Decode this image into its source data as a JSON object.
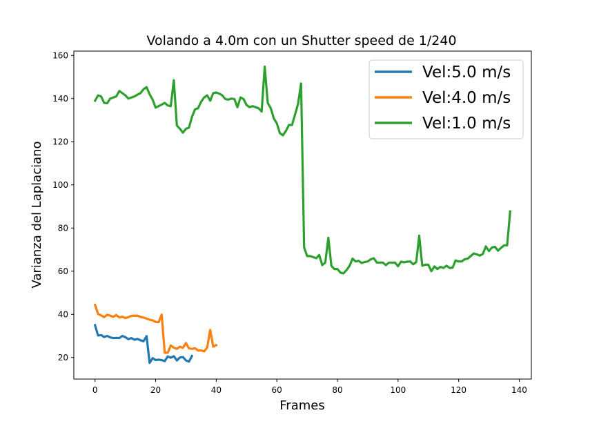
{
  "chart_data": {
    "type": "line",
    "title": "Volando a 4.0m con un Shutter speed de 1/240",
    "xlabel": "Frames",
    "ylabel": "Varianza del Laplaciano",
    "xlim": [
      -7,
      144
    ],
    "ylim": [
      10,
      162
    ],
    "xticks": [
      0,
      20,
      40,
      60,
      80,
      100,
      120,
      140
    ],
    "yticks": [
      20,
      40,
      60,
      80,
      100,
      120,
      140,
      160
    ],
    "grid": false,
    "legend_position": "top-right",
    "series": [
      {
        "name": "Vel:5.0 m/s",
        "color": "#1f77b4",
        "values": [
          35,
          30.2,
          30.4,
          29.5,
          30,
          29.3,
          29,
          29.1,
          29,
          30,
          29.4,
          28.5,
          29,
          28.2,
          28.6,
          28,
          27.5,
          29.9,
          17.5,
          19.7,
          18.8,
          19,
          18.8,
          18.3,
          20.5,
          19.9,
          20.6,
          18.6,
          20,
          20.2,
          18.6,
          18.1,
          20.7
        ]
      },
      {
        "name": "Vel:4.0 m/s",
        "color": "#ff7f0e",
        "values": [
          44.4,
          40.2,
          39.5,
          38.7,
          39.8,
          39.4,
          38.8,
          39.7,
          38.5,
          38.9,
          38.3,
          38.7,
          39.3,
          39.3,
          39.4,
          38.8,
          38.5,
          38,
          37.5,
          37.2,
          36.5,
          36.3,
          39.9,
          22.2,
          22.2,
          25.6,
          24.5,
          24,
          25,
          24.5,
          26.7,
          24.2,
          24,
          24.3,
          23.2,
          23.3,
          22.8,
          24.6,
          32.8,
          25,
          25.7
        ]
      },
      {
        "name": "Vel:1.0 m/s",
        "color": "#2ca02c",
        "values": [
          139,
          141.5,
          141,
          138,
          137.8,
          140,
          140.5,
          141,
          143.5,
          142.5,
          141.5,
          140,
          140.5,
          141,
          141.8,
          142.5,
          144.3,
          145.3,
          142,
          139.5,
          135.8,
          136.5,
          137.2,
          138,
          136.8,
          136.5,
          148.5,
          127.5,
          126,
          124.2,
          126,
          126.5,
          131.5,
          135,
          135.5,
          138.5,
          140.5,
          141.5,
          139,
          142.5,
          142.8,
          142.3,
          141.5,
          139.8,
          139.5,
          140,
          139.8,
          136,
          140.5,
          139.8,
          137,
          136,
          136.5,
          136,
          135.5,
          134,
          154.8,
          138,
          135.5,
          130.8,
          128.5,
          124,
          123,
          125,
          127.8,
          127.7,
          132.5,
          137.5,
          147,
          71,
          67,
          67,
          66.5,
          66,
          67.5,
          62.8,
          64,
          75.5,
          62.5,
          61,
          61,
          59.3,
          59,
          60.5,
          62.5,
          65.8,
          64.5,
          64.8,
          63.8,
          64.2,
          64.5,
          65.5,
          66,
          64,
          64,
          64,
          62.8,
          64,
          64,
          64,
          62.3,
          64.4,
          64.1,
          64.4,
          64.5,
          63.2,
          64.2,
          76.5,
          62.5,
          63,
          63,
          60,
          62.2,
          61,
          62,
          61.5,
          62.5,
          61.5,
          61.6,
          65,
          64.5,
          64.5,
          65.5,
          65.8,
          67,
          68.2,
          67.8,
          67.2,
          68,
          71.5,
          69.3,
          71,
          71.3,
          69.5,
          70.8,
          72,
          72,
          87.7
        ]
      }
    ]
  }
}
